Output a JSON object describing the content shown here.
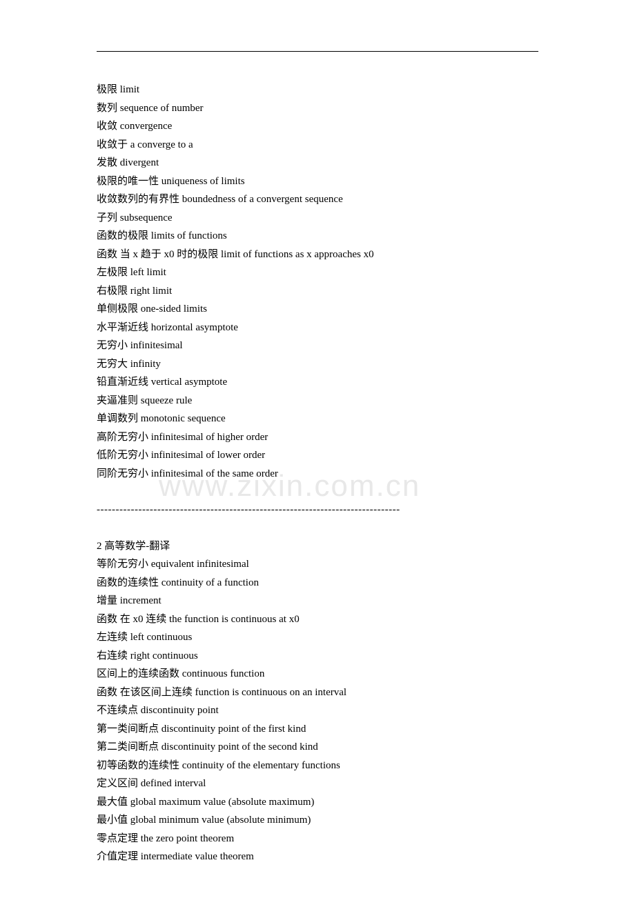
{
  "watermark": "www.zixin.com.cn",
  "separator": "--------------------------------------------------------------------------------",
  "section1": {
    "terms": [
      "极限  limit",
      "数列  sequence of number",
      "收敛  convergence",
      "收敛于  a converge to a",
      "发散  divergent",
      "极限的唯一性  uniqueness of limits",
      "收敛数列的有界性  boundedness of a convergent sequence",
      "子列  subsequence",
      "函数的极限  limits of functions",
      "函数  当 x 趋于 x0 时的极限  limit of functions as x approaches x0",
      "左极限  left limit",
      "右极限  right limit",
      "单侧极限  one-sided limits",
      "水平渐近线  horizontal asymptote",
      "无穷小  infinitesimal",
      "无穷大  infinity",
      "铅直渐近线  vertical asymptote",
      "夹逼准则  squeeze rule",
      "单调数列  monotonic sequence",
      "高阶无穷小  infinitesimal of higher order",
      "低阶无穷小  infinitesimal of lower order",
      "同阶无穷小  infinitesimal of the same order"
    ]
  },
  "section2": {
    "title": "2  高等数学-翻译",
    "terms": [
      "等阶无穷小  equivalent infinitesimal",
      "函数的连续性  continuity of a function",
      "增量  increment",
      "函数  在 x0 连续  the function is continuous at x0",
      "左连续  left continuous",
      "右连续  right continuous",
      "区间上的连续函数  continuous function",
      "函数  在该区间上连续  function is continuous on an interval",
      "不连续点  discontinuity point",
      "第一类间断点  discontinuity point of the first kind",
      "第二类间断点  discontinuity point of the second kind",
      "初等函数的连续性  continuity of the elementary functions",
      "定义区间  defined interval",
      "最大值  global maximum value (absolute maximum)",
      "最小值  global minimum value (absolute minimum)",
      "零点定理  the zero point theorem",
      "介值定理  intermediate value theorem"
    ]
  }
}
